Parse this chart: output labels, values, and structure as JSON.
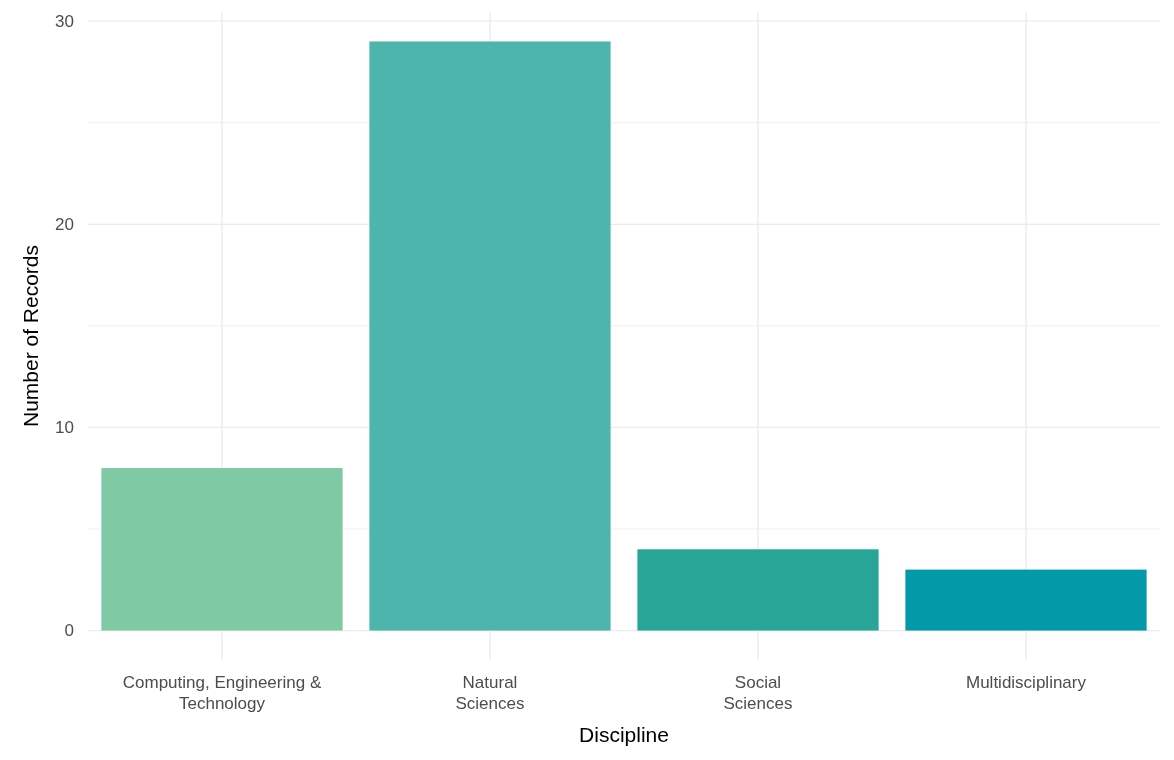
{
  "chart_data": {
    "type": "bar",
    "xlabel": "Discipline",
    "ylabel": "Number of Records",
    "categories": [
      "Computing, Engineering & Technology",
      "Natural Sciences",
      "Social Sciences",
      "Multidisciplinary"
    ],
    "values": [
      8,
      29,
      4,
      3
    ],
    "colors": [
      "#7fc9a5",
      "#4db5ab",
      "#27a597",
      "#0399a8"
    ],
    "ylim": [
      -1.45,
      30.45
    ],
    "yticks": [
      0,
      {
        "value": 5,
        "label": null
      },
      10,
      {
        "value": 15,
        "label": null
      },
      20,
      {
        "value": 25,
        "label": null
      },
      30
    ],
    "grid": true
  }
}
